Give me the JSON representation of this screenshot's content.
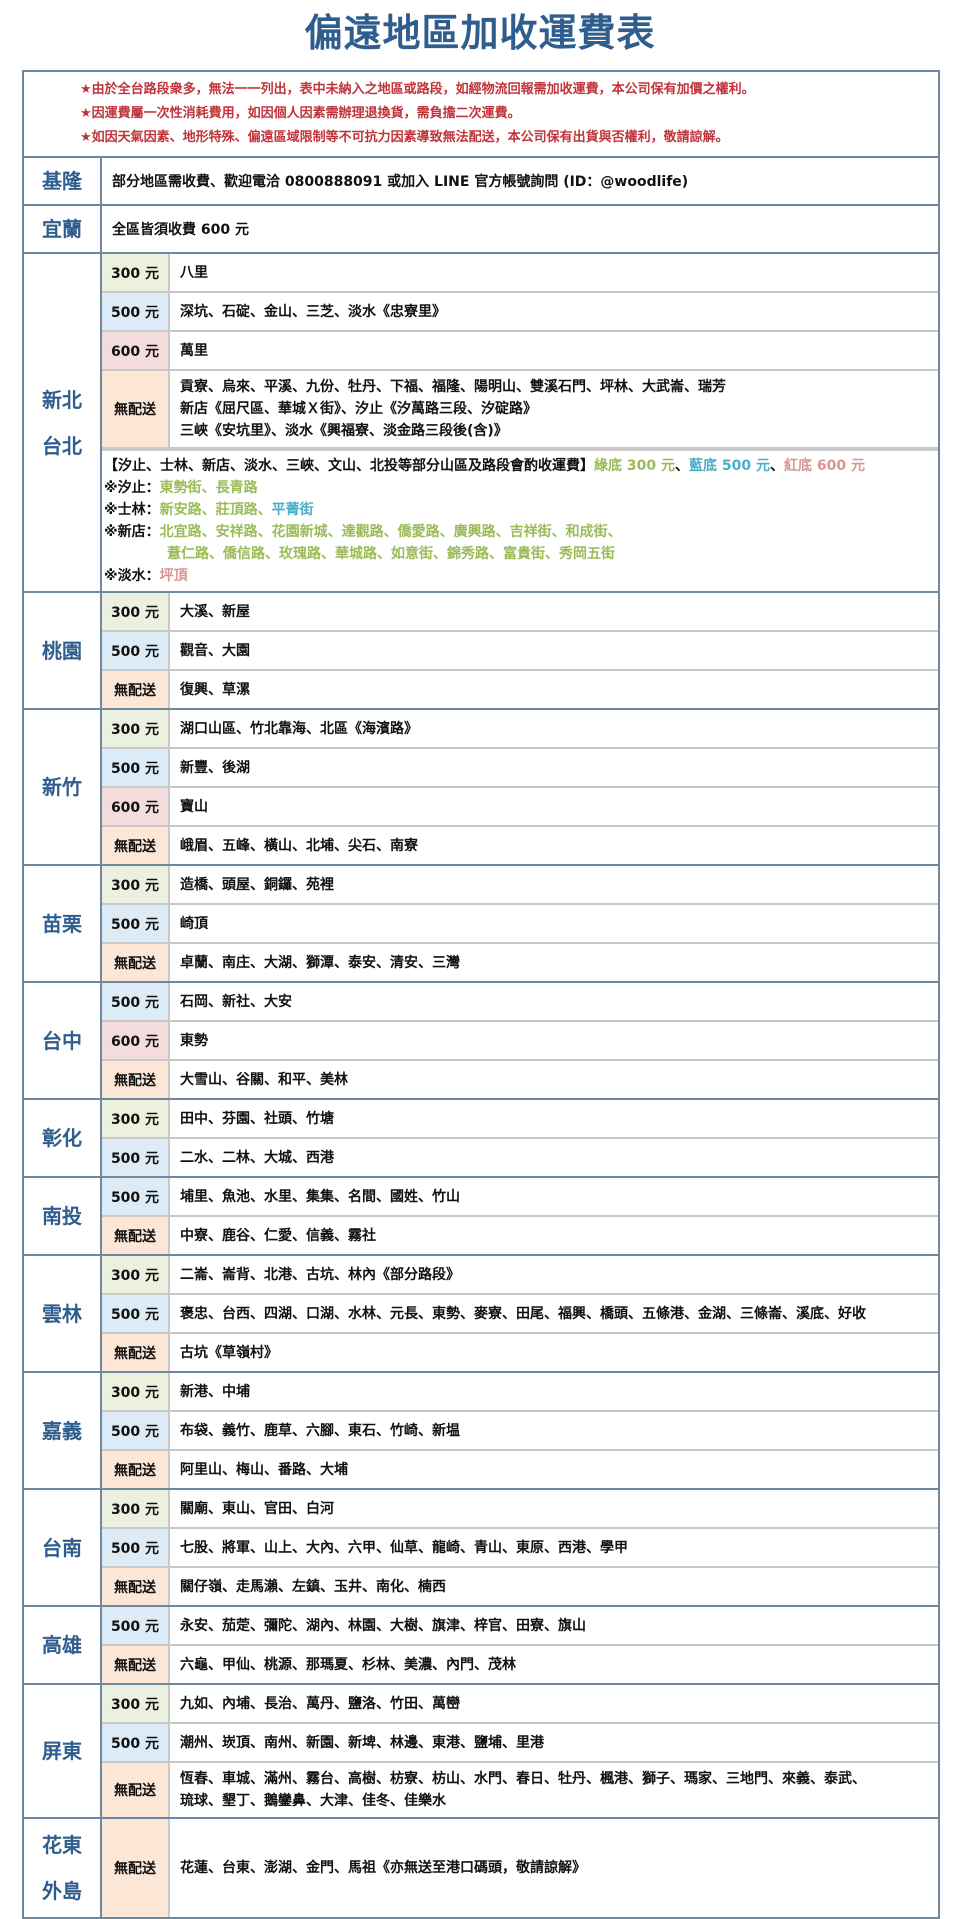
{
  "title": "偏遠地區加收運費表",
  "notes": [
    "★由於全台路段衆多，無法一一列出，表中未納入之地區或路段，如經物流回報需加收運費，本公司保有加價之權利。",
    "★因運費屬一次性消耗費用，如因個人因素需辦理退換貨，需負擔二次運費。",
    "★如因天氣因素、地形特殊、偏遠區域限制等不可抗力因素導致無法配送，本公司保有出貨與否權利，敬請諒解。"
  ],
  "colors": {
    "title": "#2f5e8e",
    "notes": "#c0343c",
    "price_300": "#ebf1de",
    "price_500": "#dcebf6",
    "price_600": "#f3dcdc",
    "price_none": "#fce7d6",
    "green": "#9bbb59",
    "blue": "#4aaec8",
    "red": "#d99594"
  },
  "regions": [
    {
      "name": [
        "基隆"
      ],
      "text": "部分地區需收費、歡迎電洽 0800888091 或加入 LINE 官方帳號詢問 (ID：@woodlife)"
    },
    {
      "name": [
        "宜蘭"
      ],
      "text": "全區皆須收費 600 元"
    },
    {
      "name": [
        "新北",
        "台北"
      ],
      "rows": [
        {
          "price": "300 元",
          "type": "300",
          "lines": [
            "八里"
          ]
        },
        {
          "price": "500 元",
          "type": "500",
          "lines": [
            "深坑、石碇、金山、三芝、淡水《忠寮里》"
          ]
        },
        {
          "price": "600 元",
          "type": "600",
          "lines": [
            "萬里"
          ]
        },
        {
          "price": "無配送",
          "type": "none",
          "lines": [
            "貢寮、烏來、平溪、九份、牡丹、下福、福隆、陽明山、雙溪石門、坪林、大武崙、瑞芳",
            "新店《屈尺區、華城Ｘ街》、汐止《汐萬路三段、汐碇路》",
            "三峽《安坑里》、淡水《興福寮、淡金路三段後(含)》"
          ]
        }
      ],
      "extra": [
        {
          "label": "",
          "segments": [
            {
              "text": "【汐止、士林、新店、淡水、三峽、文山、北投等部分山區及路段會酌收運費】",
              "color": "black"
            },
            {
              "text": "綠底 300 元",
              "color": "green"
            },
            {
              "text": "、",
              "color": "black"
            },
            {
              "text": "藍底 500 元",
              "color": "blue"
            },
            {
              "text": "、",
              "color": "black"
            },
            {
              "text": "紅底 600 元",
              "color": "red"
            }
          ]
        },
        {
          "label": "※汐止：",
          "segments": [
            {
              "text": "東勢街、長青路",
              "color": "green"
            }
          ]
        },
        {
          "label": "※士林：",
          "segments": [
            {
              "text": "新安路、莊頂路、",
              "color": "green"
            },
            {
              "text": "平菁街",
              "color": "blue"
            }
          ]
        },
        {
          "label": "※新店：",
          "segments": [
            {
              "text": "北宜路、安祥路、花園新城、達觀路、僑愛路、廣興路、吉祥街、和成街、",
              "color": "green"
            }
          ]
        },
        {
          "label": "",
          "indent": true,
          "segments": [
            {
              "text": "薏仁路、僑信路、玫瑰路、華城路、如意街、錦秀路、富貴街、秀岡五街",
              "color": "green"
            }
          ]
        },
        {
          "label": "※淡水：",
          "segments": [
            {
              "text": "坪頂",
              "color": "red"
            }
          ]
        }
      ]
    },
    {
      "name": [
        "桃園"
      ],
      "rows": [
        {
          "price": "300 元",
          "type": "300",
          "lines": [
            "大溪、新屋"
          ]
        },
        {
          "price": "500 元",
          "type": "500",
          "lines": [
            "觀音、大園"
          ]
        },
        {
          "price": "無配送",
          "type": "none",
          "lines": [
            "復興、草漯"
          ]
        }
      ]
    },
    {
      "name": [
        "新竹"
      ],
      "rows": [
        {
          "price": "300 元",
          "type": "300",
          "lines": [
            "湖口山區、竹北靠海、北區《海濱路》"
          ]
        },
        {
          "price": "500 元",
          "type": "500",
          "lines": [
            "新豐、後湖"
          ]
        },
        {
          "price": "600 元",
          "type": "600",
          "lines": [
            "寶山"
          ]
        },
        {
          "price": "無配送",
          "type": "none",
          "lines": [
            "峨眉、五峰、橫山、北埔、尖石、南寮"
          ]
        }
      ]
    },
    {
      "name": [
        "苗栗"
      ],
      "rows": [
        {
          "price": "300 元",
          "type": "300",
          "lines": [
            "造橋、頭屋、銅鑼、苑裡"
          ]
        },
        {
          "price": "500 元",
          "type": "500",
          "lines": [
            "崎頂"
          ]
        },
        {
          "price": "無配送",
          "type": "none",
          "lines": [
            "卓蘭、南庄、大湖、獅潭、泰安、清安、三灣"
          ]
        }
      ]
    },
    {
      "name": [
        "台中"
      ],
      "rows": [
        {
          "price": "500 元",
          "type": "500",
          "lines": [
            "石岡、新社、大安"
          ]
        },
        {
          "price": "600 元",
          "type": "600",
          "lines": [
            "東勢"
          ]
        },
        {
          "price": "無配送",
          "type": "none",
          "lines": [
            "大雪山、谷關、和平、美林"
          ]
        }
      ]
    },
    {
      "name": [
        "彰化"
      ],
      "rows": [
        {
          "price": "300 元",
          "type": "300",
          "lines": [
            "田中、芬園、社頭、竹塘"
          ]
        },
        {
          "price": "500 元",
          "type": "500",
          "lines": [
            "二水、二林、大城、西港"
          ]
        }
      ]
    },
    {
      "name": [
        "南投"
      ],
      "rows": [
        {
          "price": "500 元",
          "type": "500",
          "lines": [
            "埔里、魚池、水里、集集、名間、國姓、竹山"
          ]
        },
        {
          "price": "無配送",
          "type": "none",
          "lines": [
            "中寮、鹿谷、仁愛、信義、霧社"
          ]
        }
      ]
    },
    {
      "name": [
        "雲林"
      ],
      "rows": [
        {
          "price": "300 元",
          "type": "300",
          "lines": [
            "二崙、崙背、北港、古坑、林內《部分路段》"
          ]
        },
        {
          "price": "500 元",
          "type": "500",
          "lines": [
            "褒忠、台西、四湖、口湖、水林、元長、東勢、麥寮、田尾、福興、橋頭、五條港、金湖、三條崙、溪底、好收"
          ]
        },
        {
          "price": "無配送",
          "type": "none",
          "lines": [
            "古坑《草嶺村》"
          ]
        }
      ]
    },
    {
      "name": [
        "嘉義"
      ],
      "rows": [
        {
          "price": "300 元",
          "type": "300",
          "lines": [
            "新港、中埔"
          ]
        },
        {
          "price": "500 元",
          "type": "500",
          "lines": [
            "布袋、義竹、鹿草、六腳、東石、竹崎、新塭"
          ]
        },
        {
          "price": "無配送",
          "type": "none",
          "lines": [
            "阿里山、梅山、番路、大埔"
          ]
        }
      ]
    },
    {
      "name": [
        "台南"
      ],
      "rows": [
        {
          "price": "300 元",
          "type": "300",
          "lines": [
            "關廟、東山、官田、白河"
          ]
        },
        {
          "price": "500 元",
          "type": "500",
          "lines": [
            "七股、將軍、山上、大內、六甲、仙草、龍崎、青山、東原、西港、學甲"
          ]
        },
        {
          "price": "無配送",
          "type": "none",
          "lines": [
            "關仔嶺、走馬瀨、左鎮、玉井、南化、楠西"
          ]
        }
      ]
    },
    {
      "name": [
        "高雄"
      ],
      "rows": [
        {
          "price": "500 元",
          "type": "500",
          "lines": [
            "永安、茄萣、彌陀、湖內、林園、大樹、旗津、梓官、田寮、旗山"
          ]
        },
        {
          "price": "無配送",
          "type": "none",
          "lines": [
            "六龜、甲仙、桃源、那瑪夏、杉林、美濃、內門、茂林"
          ]
        }
      ]
    },
    {
      "name": [
        "屏東"
      ],
      "rows": [
        {
          "price": "300 元",
          "type": "300",
          "lines": [
            "九如、內埔、長治、萬丹、鹽洛、竹田、萬巒"
          ]
        },
        {
          "price": "500 元",
          "type": "500",
          "lines": [
            "潮州、崁頂、南州、新園、新埤、林邊、東港、鹽埔、里港"
          ]
        },
        {
          "price": "無配送",
          "type": "none",
          "lines": [
            "恆春、車城、滿州、霧台、高樹、枋寮、枋山、水門、春日、牡丹、楓港、獅子、瑪家、三地門、來義、泰武、",
            "琉球、墾丁、鵝鑾鼻、大津、佳冬、佳樂水"
          ]
        }
      ]
    },
    {
      "name": [
        "花東",
        "外島"
      ],
      "rows": [
        {
          "price": "無配送",
          "type": "none",
          "lines": [
            "花蓮、台東、澎湖、金門、馬祖《亦無送至港口碼頭，敬請諒解》"
          ]
        }
      ]
    }
  ]
}
